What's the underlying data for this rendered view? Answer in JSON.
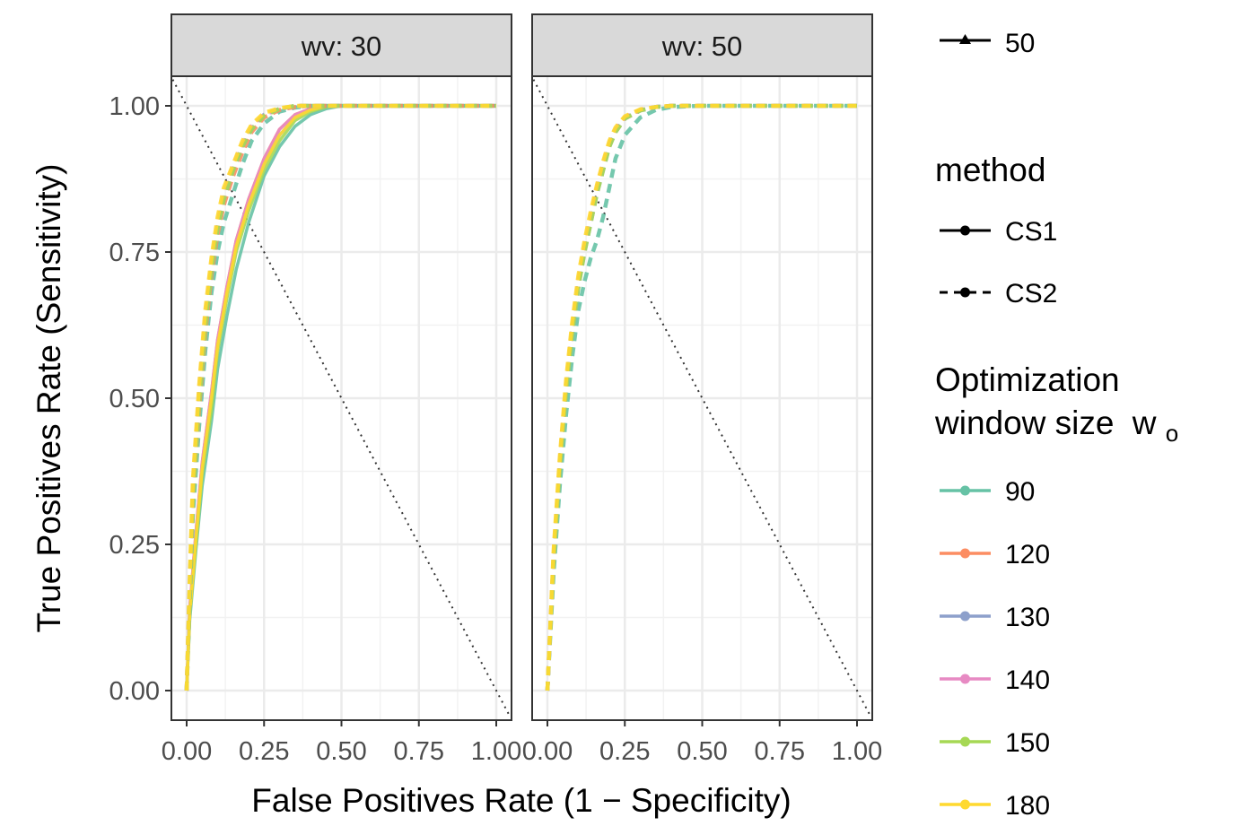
{
  "chart_data": {
    "type": "line",
    "xlabel": "False Positives Rate (1 − Specificity)",
    "ylabel": "True Positives Rate (Sensitivity)",
    "xlim": [
      0,
      1
    ],
    "ylim": [
      0,
      1
    ],
    "x_ticks": [
      "0.00",
      "0.25",
      "0.50",
      "0.75",
      "1.00"
    ],
    "y_ticks": [
      "0.00",
      "0.25",
      "0.50",
      "0.75",
      "1.00"
    ],
    "grid": true,
    "reference_line": "dotted diagonal from (0,1) to (1,0)",
    "legend_position": "right",
    "legend": {
      "shape_key_label": "50",
      "method_title": "method",
      "methods": [
        {
          "label": "CS1",
          "dash": "solid"
        },
        {
          "label": "CS2",
          "dash": "dashed"
        }
      ],
      "window_title_line1": "Optimization",
      "window_title_line2": "window size",
      "window_title_symbol": "w",
      "window_title_subscript": "o",
      "windows": [
        {
          "label": "90",
          "color": "#66C2A5"
        },
        {
          "label": "120",
          "color": "#FC8D62"
        },
        {
          "label": "130",
          "color": "#8DA0CB"
        },
        {
          "label": "140",
          "color": "#E78AC3"
        },
        {
          "label": "150",
          "color": "#A6D854"
        },
        {
          "label": "180",
          "color": "#FFD92F"
        }
      ]
    },
    "panels": [
      {
        "title": "wv: 30",
        "series": [
          {
            "window": "90",
            "method": "CS1",
            "x": [
              0,
              0.01,
              0.03,
              0.05,
              0.08,
              0.1,
              0.13,
              0.16,
              0.2,
              0.25,
              0.3,
              0.35,
              0.4,
              0.45,
              0.5,
              0.55,
              0.6,
              1.0
            ],
            "y": [
              0,
              0.12,
              0.24,
              0.35,
              0.46,
              0.55,
              0.64,
              0.72,
              0.8,
              0.88,
              0.93,
              0.965,
              0.985,
              0.995,
              1.0,
              1.0,
              1.0,
              1.0
            ]
          },
          {
            "window": "120",
            "method": "CS1",
            "x": [
              0,
              0.01,
              0.03,
              0.05,
              0.08,
              0.1,
              0.13,
              0.16,
              0.2,
              0.25,
              0.3,
              0.35,
              0.4,
              0.45,
              0.5,
              0.55,
              0.6,
              1.0
            ],
            "y": [
              0,
              0.14,
              0.27,
              0.39,
              0.51,
              0.6,
              0.69,
              0.77,
              0.84,
              0.91,
              0.96,
              0.985,
              0.995,
              1.0,
              1.0,
              1.0,
              1.0,
              1.0
            ]
          },
          {
            "window": "130",
            "method": "CS1",
            "x": [
              0,
              0.01,
              0.03,
              0.05,
              0.08,
              0.1,
              0.13,
              0.16,
              0.2,
              0.25,
              0.3,
              0.35,
              0.4,
              0.45,
              0.5,
              0.55,
              0.6,
              1.0
            ],
            "y": [
              0,
              0.13,
              0.26,
              0.38,
              0.5,
              0.59,
              0.68,
              0.76,
              0.83,
              0.9,
              0.95,
              0.98,
              0.993,
              1.0,
              1.0,
              1.0,
              1.0,
              1.0
            ]
          },
          {
            "window": "140",
            "method": "CS1",
            "x": [
              0,
              0.01,
              0.03,
              0.05,
              0.08,
              0.1,
              0.13,
              0.16,
              0.2,
              0.25,
              0.3,
              0.35,
              0.4,
              0.45,
              0.5,
              0.55,
              0.6,
              1.0
            ],
            "y": [
              0,
              0.14,
              0.27,
              0.39,
              0.51,
              0.6,
              0.69,
              0.77,
              0.84,
              0.91,
              0.96,
              0.985,
              0.995,
              1.0,
              1.0,
              1.0,
              1.0,
              1.0
            ]
          },
          {
            "window": "150",
            "method": "CS1",
            "x": [
              0,
              0.01,
              0.03,
              0.05,
              0.08,
              0.1,
              0.13,
              0.16,
              0.2,
              0.25,
              0.3,
              0.35,
              0.4,
              0.45,
              0.5,
              0.55,
              0.6,
              1.0
            ],
            "y": [
              0,
              0.13,
              0.25,
              0.37,
              0.48,
              0.58,
              0.67,
              0.75,
              0.82,
              0.89,
              0.94,
              0.975,
              0.99,
              0.998,
              1.0,
              1.0,
              1.0,
              1.0
            ]
          },
          {
            "window": "180",
            "method": "CS1",
            "x": [
              0,
              0.01,
              0.03,
              0.05,
              0.08,
              0.1,
              0.13,
              0.16,
              0.2,
              0.25,
              0.3,
              0.35,
              0.4,
              0.45,
              0.5,
              0.55,
              0.6,
              1.0
            ],
            "y": [
              0,
              0.13,
              0.26,
              0.38,
              0.5,
              0.59,
              0.68,
              0.76,
              0.83,
              0.9,
              0.95,
              0.98,
              0.993,
              1.0,
              1.0,
              1.0,
              1.0,
              1.0
            ]
          },
          {
            "window": "90",
            "method": "CS2",
            "x": [
              0,
              0.01,
              0.02,
              0.04,
              0.06,
              0.08,
              0.1,
              0.12,
              0.15,
              0.18,
              0.21,
              0.25,
              0.3,
              0.35,
              0.4,
              0.5,
              1.0
            ],
            "y": [
              0,
              0.15,
              0.3,
              0.45,
              0.58,
              0.68,
              0.75,
              0.8,
              0.85,
              0.9,
              0.94,
              0.97,
              0.99,
              0.997,
              1.0,
              1.0,
              1.0
            ]
          },
          {
            "window": "120",
            "method": "CS2",
            "x": [
              0,
              0.01,
              0.02,
              0.04,
              0.06,
              0.08,
              0.1,
              0.12,
              0.15,
              0.18,
              0.21,
              0.25,
              0.3,
              0.35,
              0.4,
              0.5,
              1.0
            ],
            "y": [
              0,
              0.17,
              0.33,
              0.48,
              0.61,
              0.71,
              0.78,
              0.83,
              0.88,
              0.92,
              0.955,
              0.98,
              0.993,
              0.998,
              1.0,
              1.0,
              1.0
            ]
          },
          {
            "window": "130",
            "method": "CS2",
            "x": [
              0,
              0.01,
              0.02,
              0.04,
              0.06,
              0.08,
              0.1,
              0.12,
              0.15,
              0.18,
              0.21,
              0.25,
              0.3,
              0.35,
              0.4,
              0.5,
              1.0
            ],
            "y": [
              0,
              0.18,
              0.34,
              0.5,
              0.63,
              0.72,
              0.79,
              0.84,
              0.89,
              0.93,
              0.96,
              0.985,
              0.995,
              1.0,
              1.0,
              1.0,
              1.0
            ]
          },
          {
            "window": "140",
            "method": "CS2",
            "x": [
              0,
              0.01,
              0.02,
              0.04,
              0.06,
              0.08,
              0.1,
              0.12,
              0.15,
              0.18,
              0.21,
              0.25,
              0.3,
              0.35,
              0.4,
              0.5,
              1.0
            ],
            "y": [
              0,
              0.18,
              0.35,
              0.51,
              0.64,
              0.73,
              0.8,
              0.85,
              0.9,
              0.935,
              0.965,
              0.985,
              0.995,
              1.0,
              1.0,
              1.0,
              1.0
            ]
          },
          {
            "window": "150",
            "method": "CS2",
            "x": [
              0,
              0.01,
              0.02,
              0.04,
              0.06,
              0.08,
              0.1,
              0.12,
              0.15,
              0.18,
              0.21,
              0.25,
              0.3,
              0.35,
              0.4,
              0.5,
              1.0
            ],
            "y": [
              0,
              0.17,
              0.33,
              0.49,
              0.62,
              0.72,
              0.79,
              0.84,
              0.89,
              0.93,
              0.96,
              0.983,
              0.995,
              1.0,
              1.0,
              1.0,
              1.0
            ]
          },
          {
            "window": "180",
            "method": "CS2",
            "x": [
              0,
              0.01,
              0.02,
              0.04,
              0.06,
              0.08,
              0.1,
              0.12,
              0.15,
              0.18,
              0.21,
              0.25,
              0.3,
              0.35,
              0.4,
              0.5,
              1.0
            ],
            "y": [
              0,
              0.19,
              0.36,
              0.52,
              0.65,
              0.74,
              0.81,
              0.86,
              0.9,
              0.94,
              0.968,
              0.988,
              0.996,
              1.0,
              1.0,
              1.0,
              1.0
            ]
          }
        ]
      },
      {
        "title": "wv: 50",
        "series": [
          {
            "window": "90",
            "method": "CS2",
            "x": [
              0,
              0.02,
              0.04,
              0.06,
              0.08,
              0.1,
              0.12,
              0.14,
              0.16,
              0.18,
              0.2,
              0.22,
              0.25,
              0.3,
              0.35,
              0.4,
              0.5,
              1.0
            ],
            "y": [
              0,
              0.2,
              0.35,
              0.47,
              0.57,
              0.65,
              0.7,
              0.74,
              0.77,
              0.81,
              0.86,
              0.91,
              0.95,
              0.98,
              0.993,
              0.998,
              1.0,
              1.0
            ]
          },
          {
            "window": "120",
            "method": "CS2",
            "x": [
              0,
              0.02,
              0.04,
              0.06,
              0.08,
              0.1,
              0.12,
              0.14,
              0.16,
              0.18,
              0.2,
              0.22,
              0.25,
              0.3,
              0.35,
              0.4,
              0.5,
              1.0
            ],
            "y": [
              0,
              0.23,
              0.39,
              0.52,
              0.62,
              0.7,
              0.76,
              0.81,
              0.86,
              0.9,
              0.935,
              0.96,
              0.98,
              0.993,
              0.998,
              1.0,
              1.0,
              1.0
            ]
          },
          {
            "window": "130",
            "method": "CS2",
            "x": [
              0,
              0.02,
              0.04,
              0.06,
              0.08,
              0.1,
              0.12,
              0.14,
              0.16,
              0.18,
              0.2,
              0.22,
              0.25,
              0.3,
              0.35,
              0.4,
              0.5,
              1.0
            ],
            "y": [
              0,
              0.22,
              0.38,
              0.51,
              0.61,
              0.69,
              0.75,
              0.8,
              0.85,
              0.89,
              0.93,
              0.955,
              0.978,
              0.992,
              0.998,
              1.0,
              1.0,
              1.0
            ]
          },
          {
            "window": "140",
            "method": "CS2",
            "x": [
              0,
              0.02,
              0.04,
              0.06,
              0.08,
              0.1,
              0.12,
              0.14,
              0.16,
              0.18,
              0.2,
              0.22,
              0.25,
              0.3,
              0.35,
              0.4,
              0.5,
              1.0
            ],
            "y": [
              0,
              0.23,
              0.39,
              0.52,
              0.62,
              0.7,
              0.76,
              0.81,
              0.86,
              0.9,
              0.935,
              0.96,
              0.98,
              0.993,
              0.998,
              1.0,
              1.0,
              1.0
            ]
          },
          {
            "window": "150",
            "method": "CS2",
            "x": [
              0,
              0.02,
              0.04,
              0.06,
              0.08,
              0.1,
              0.12,
              0.14,
              0.16,
              0.18,
              0.2,
              0.22,
              0.25,
              0.3,
              0.35,
              0.4,
              0.5,
              1.0
            ],
            "y": [
              0,
              0.22,
              0.38,
              0.51,
              0.61,
              0.69,
              0.75,
              0.8,
              0.85,
              0.89,
              0.93,
              0.955,
              0.978,
              0.992,
              0.998,
              1.0,
              1.0,
              1.0
            ]
          },
          {
            "window": "180",
            "method": "CS2",
            "x": [
              0,
              0.02,
              0.04,
              0.06,
              0.08,
              0.1,
              0.12,
              0.14,
              0.16,
              0.18,
              0.2,
              0.22,
              0.25,
              0.3,
              0.35,
              0.4,
              0.5,
              1.0
            ],
            "y": [
              0,
              0.24,
              0.4,
              0.53,
              0.63,
              0.71,
              0.77,
              0.82,
              0.865,
              0.905,
              0.94,
              0.963,
              0.982,
              0.994,
              0.998,
              1.0,
              1.0,
              1.0
            ]
          }
        ]
      }
    ]
  }
}
